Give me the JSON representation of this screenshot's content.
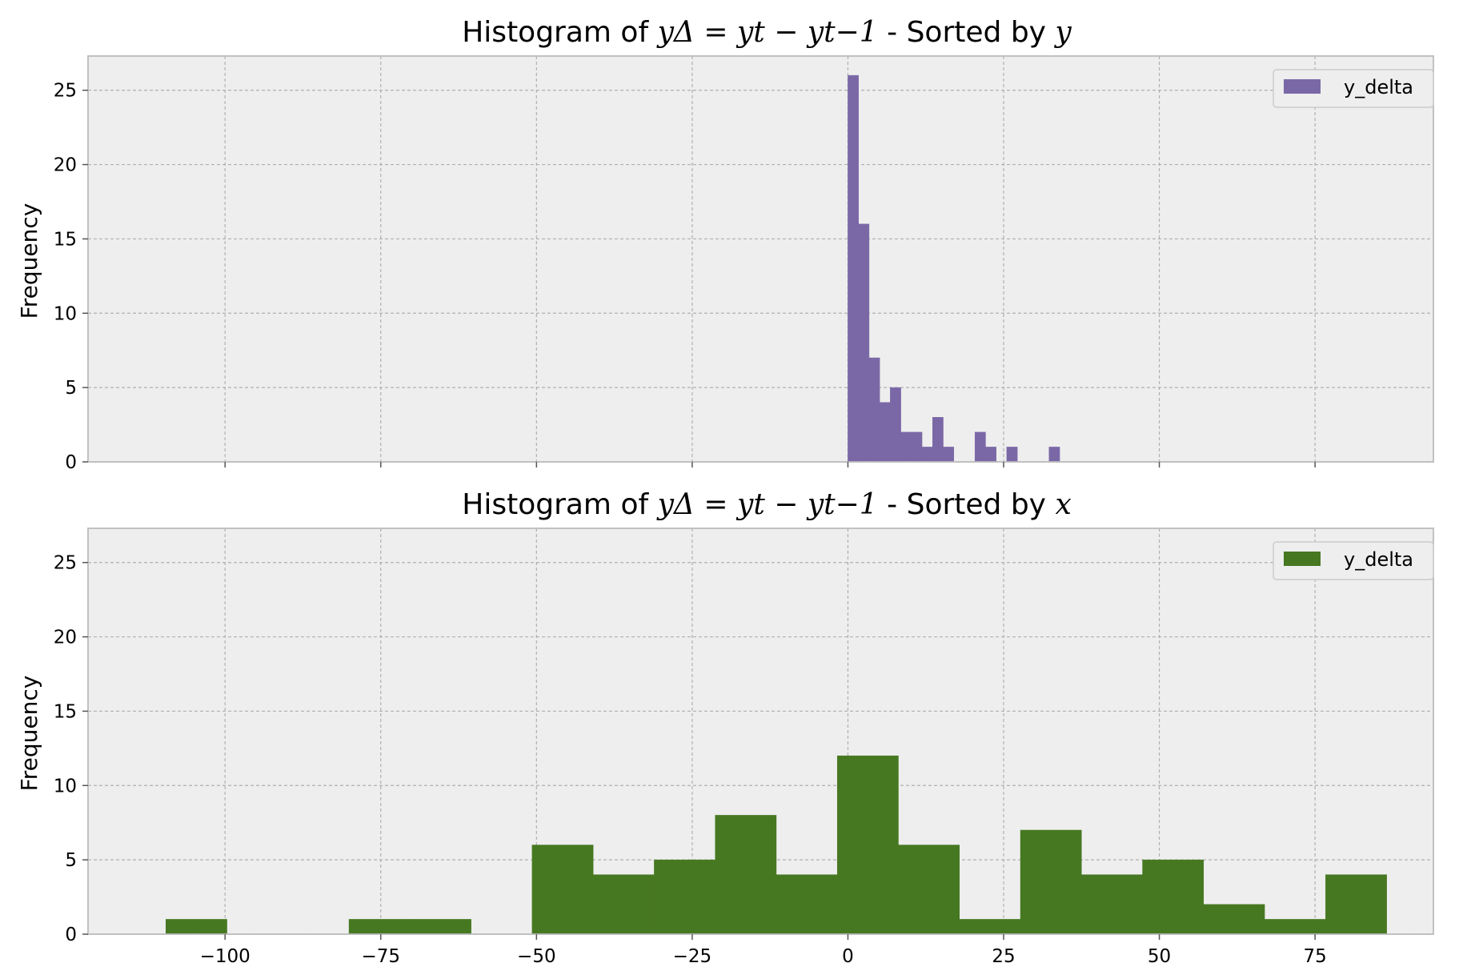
{
  "figure": {
    "background": "#ffffff",
    "axes_background": "#eeeeee",
    "grid_color": "#b0b0b0",
    "spine_color": "#bcbcbc"
  },
  "chart_data": [
    {
      "type": "bar",
      "subtype": "histogram",
      "title": {
        "prefix": "Histogram of ",
        "math": "yΔ = yt − yt−1",
        "suffix": " - Sorted by ",
        "sorted_by": "y"
      },
      "ylabel": "Frequency",
      "xlim": [
        -122,
        94
      ],
      "ylim": [
        0,
        27.3
      ],
      "yticks": [
        0,
        5,
        10,
        15,
        20,
        25
      ],
      "xticks": [
        -100,
        -75,
        -50,
        -25,
        0,
        25,
        50,
        75
      ],
      "xtick_labels_shown": false,
      "grid": true,
      "color": "#7a68a6",
      "legend": {
        "label": "y_delta",
        "position": "upper right"
      },
      "bins": [
        {
          "x0": 0,
          "x1": 1.7,
          "count": 26
        },
        {
          "x0": 1.7,
          "x1": 3.4,
          "count": 16
        },
        {
          "x0": 3.4,
          "x1": 5.1,
          "count": 7
        },
        {
          "x0": 5.1,
          "x1": 6.8,
          "count": 4
        },
        {
          "x0": 6.8,
          "x1": 8.5,
          "count": 5
        },
        {
          "x0": 8.5,
          "x1": 10.2,
          "count": 2
        },
        {
          "x0": 10.2,
          "x1": 11.9,
          "count": 2
        },
        {
          "x0": 11.9,
          "x1": 13.6,
          "count": 1
        },
        {
          "x0": 13.6,
          "x1": 15.3,
          "count": 3
        },
        {
          "x0": 15.3,
          "x1": 17.0,
          "count": 1
        },
        {
          "x0": 20.4,
          "x1": 22.1,
          "count": 2
        },
        {
          "x0": 22.1,
          "x1": 23.8,
          "count": 1
        },
        {
          "x0": 25.5,
          "x1": 27.2,
          "count": 1
        },
        {
          "x0": 32.3,
          "x1": 34.0,
          "count": 1
        }
      ]
    },
    {
      "type": "bar",
      "subtype": "histogram",
      "title": {
        "prefix": "Histogram of ",
        "math": "yΔ = yt − yt−1",
        "suffix": " - Sorted by ",
        "sorted_by": "x"
      },
      "ylabel": "Frequency",
      "xlim": [
        -122,
        94
      ],
      "ylim": [
        0,
        27.3
      ],
      "yticks": [
        0,
        5,
        10,
        15,
        20,
        25
      ],
      "xticks": [
        -100,
        -75,
        -50,
        -25,
        0,
        25,
        50,
        75
      ],
      "xtick_labels": [
        "−100",
        "−75",
        "−50",
        "−25",
        "0",
        "25",
        "50",
        "75"
      ],
      "grid": true,
      "color": "#467821",
      "legend": {
        "label": "y_delta",
        "position": "upper right"
      },
      "bins": [
        {
          "x0": -109.5,
          "x1": -99.7,
          "count": 1
        },
        {
          "x0": -80.1,
          "x1": -70.3,
          "count": 1
        },
        {
          "x0": -70.3,
          "x1": -60.5,
          "count": 1
        },
        {
          "x0": -50.7,
          "x1": -40.9,
          "count": 6
        },
        {
          "x0": -40.9,
          "x1": -31.1,
          "count": 4
        },
        {
          "x0": -31.1,
          "x1": -21.3,
          "count": 5
        },
        {
          "x0": -21.3,
          "x1": -11.5,
          "count": 8
        },
        {
          "x0": -11.5,
          "x1": -1.7,
          "count": 4
        },
        {
          "x0": -1.7,
          "x1": 8.1,
          "count": 12
        },
        {
          "x0": 8.1,
          "x1": 17.9,
          "count": 6
        },
        {
          "x0": 17.9,
          "x1": 27.7,
          "count": 1
        },
        {
          "x0": 27.7,
          "x1": 37.5,
          "count": 7
        },
        {
          "x0": 37.5,
          "x1": 47.3,
          "count": 4
        },
        {
          "x0": 47.3,
          "x1": 57.1,
          "count": 5
        },
        {
          "x0": 57.1,
          "x1": 66.9,
          "count": 2
        },
        {
          "x0": 66.9,
          "x1": 76.7,
          "count": 1
        },
        {
          "x0": 76.7,
          "x1": 86.5,
          "count": 4
        }
      ]
    }
  ]
}
